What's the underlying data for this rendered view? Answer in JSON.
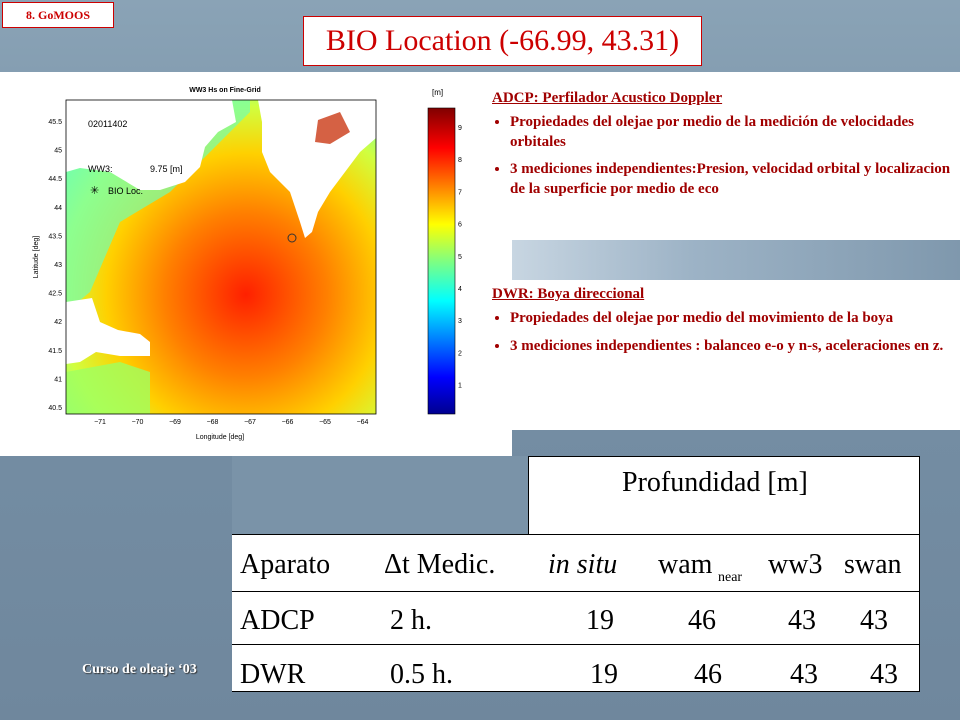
{
  "slide_tag": "8.  GoMOOS",
  "title": "BIO Location (-66.99, 43.31)",
  "map": {
    "title": "WW3 Hs on Fine-Grid",
    "date_label": "02011402",
    "ww3_label": "WW3:",
    "ww3_value": "9.75 [m]",
    "bio_label": "BIO Loc.",
    "ylabel": "Latitude [deg]",
    "xlabel": "Longitude [deg]",
    "colorbar_unit": "[m]",
    "y_ticks": [
      "45.5",
      "45",
      "44.5",
      "44",
      "43.5",
      "43",
      "42.5",
      "42",
      "41.5",
      "41",
      "40.5"
    ],
    "x_ticks": [
      "−71",
      "−70",
      "−69",
      "−68",
      "−67",
      "−66",
      "−65",
      "−64"
    ],
    "colorbar_ticks": [
      "9",
      "8",
      "7",
      "6",
      "5",
      "4",
      "3",
      "2",
      "1"
    ]
  },
  "adcp": {
    "heading": "ADCP: Perfilador Acustico Doppler",
    "bullets": [
      "Propiedades del olejae por medio de la medición de velocidades orbitales",
      "3 mediciones independientes:Presion, velocidad orbital y  localizacion de la superficie por medio de eco"
    ]
  },
  "dwr": {
    "heading": "DWR: Boya direccional",
    "bullets": [
      "Propiedades del olejae por medio del movimiento de la boya",
      "3 mediciones independientes : balanceo e-o y n-s, aceleraciones en z."
    ]
  },
  "footer": "Curso de oleaje ‘03",
  "table": {
    "group_header": "Profundidad [m]",
    "headers": [
      "Aparato",
      "Δt Medic.",
      "in situ",
      "wam",
      "near",
      "ww3",
      "swan"
    ],
    "rows": [
      [
        "ADCP",
        "2  h.",
        "19",
        "46",
        "43",
        "43"
      ],
      [
        "DWR",
        "0.5 h.",
        "19",
        "46",
        "43",
        "43"
      ]
    ]
  }
}
